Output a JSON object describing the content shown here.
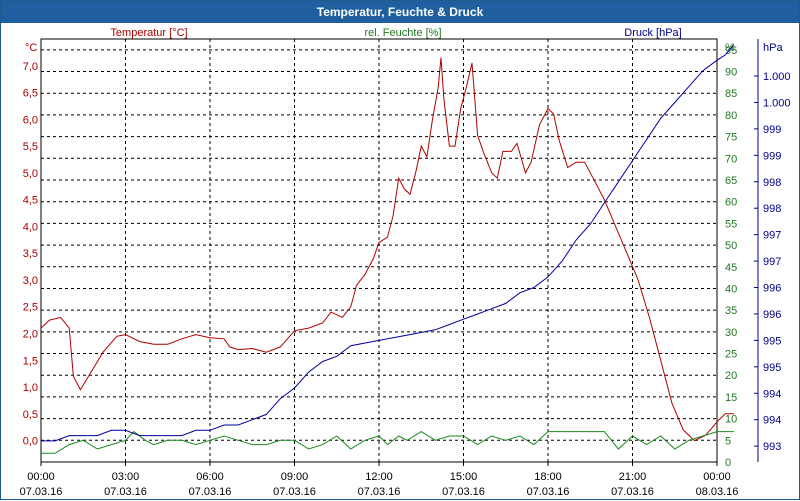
{
  "window": {
    "title": "Temperatur, Feuchte & Druck"
  },
  "colors": {
    "temperature": "#b00000",
    "humidity": "#1a8a1a",
    "pressure": "#0000a0",
    "grid": "#000000"
  },
  "chart_data": {
    "type": "line",
    "title": "Temperatur, Feuchte & Druck",
    "x_unit": "hours since 07.03.16 00:00",
    "x_range": [
      0,
      24
    ],
    "x_ticks": [
      {
        "time": "00:00",
        "date": "07.03.16"
      },
      {
        "time": "03:00",
        "date": "07.03.16"
      },
      {
        "time": "06:00",
        "date": "07.03.16"
      },
      {
        "time": "09:00",
        "date": "07.03.16"
      },
      {
        "time": "12:00",
        "date": "07.03.16"
      },
      {
        "time": "15:00",
        "date": "07.03.16"
      },
      {
        "time": "18:00",
        "date": "07.03.16"
      },
      {
        "time": "21:00",
        "date": "07.03.16"
      },
      {
        "time": "00:00",
        "date": "08.03.16"
      }
    ],
    "axes": {
      "temperature": {
        "unit": "°C",
        "label": "Temperatur [°C]",
        "range": [
          -0.4,
          7.5
        ],
        "ticks": [
          "0,0",
          "0,5",
          "1,0",
          "1,5",
          "2,0",
          "2,5",
          "3,0",
          "3,5",
          "4,0",
          "4,5",
          "5,0",
          "5,5",
          "6,0",
          "6,5",
          "7,0"
        ]
      },
      "humidity": {
        "unit": "%",
        "label": "rel. Feuchte [%]",
        "range": [
          0,
          97.5
        ],
        "ticks": [
          "0",
          "5",
          "10",
          "15",
          "20",
          "25",
          "30",
          "35",
          "40",
          "45",
          "50",
          "55",
          "60",
          "65",
          "70",
          "75",
          "80",
          "85",
          "90",
          "95"
        ]
      },
      "pressure": {
        "unit": "hPa",
        "label": "Druck [hPa]",
        "range": [
          992.7,
          1000.7
        ],
        "ticks": [
          "993",
          "994",
          "994",
          "995",
          "995",
          "996",
          "996",
          "997",
          "997",
          "998",
          "998",
          "999",
          "999",
          "1.000",
          "1.000"
        ]
      }
    },
    "series": [
      {
        "name": "Temperatur [°C]",
        "axis": "temperature",
        "points": [
          [
            0,
            2.1
          ],
          [
            0.3,
            2.25
          ],
          [
            0.7,
            2.3
          ],
          [
            1.0,
            2.1
          ],
          [
            1.15,
            1.2
          ],
          [
            1.4,
            0.95
          ],
          [
            1.8,
            1.3
          ],
          [
            2.2,
            1.65
          ],
          [
            2.7,
            1.95
          ],
          [
            3.0,
            1.98
          ],
          [
            3.5,
            1.85
          ],
          [
            4.0,
            1.8
          ],
          [
            4.5,
            1.8
          ],
          [
            5.0,
            1.9
          ],
          [
            5.5,
            1.98
          ],
          [
            6.0,
            1.92
          ],
          [
            6.5,
            1.9
          ],
          [
            6.7,
            1.75
          ],
          [
            7.0,
            1.7
          ],
          [
            7.5,
            1.72
          ],
          [
            8.0,
            1.65
          ],
          [
            8.5,
            1.75
          ],
          [
            9.0,
            2.05
          ],
          [
            9.5,
            2.1
          ],
          [
            10.0,
            2.2
          ],
          [
            10.3,
            2.4
          ],
          [
            10.7,
            2.3
          ],
          [
            11.0,
            2.5
          ],
          [
            11.2,
            2.9
          ],
          [
            11.5,
            3.1
          ],
          [
            11.8,
            3.4
          ],
          [
            12.0,
            3.7
          ],
          [
            12.3,
            3.8
          ],
          [
            12.5,
            4.2
          ],
          [
            12.7,
            4.9
          ],
          [
            12.9,
            4.7
          ],
          [
            13.1,
            4.6
          ],
          [
            13.3,
            5.0
          ],
          [
            13.5,
            5.5
          ],
          [
            13.7,
            5.3
          ],
          [
            13.9,
            6.0
          ],
          [
            14.1,
            6.6
          ],
          [
            14.2,
            7.15
          ],
          [
            14.3,
            6.4
          ],
          [
            14.5,
            5.5
          ],
          [
            14.7,
            5.5
          ],
          [
            14.9,
            6.2
          ],
          [
            15.1,
            6.6
          ],
          [
            15.3,
            7.05
          ],
          [
            15.5,
            5.7
          ],
          [
            15.7,
            5.4
          ],
          [
            16.0,
            5.0
          ],
          [
            16.2,
            4.9
          ],
          [
            16.4,
            5.4
          ],
          [
            16.7,
            5.4
          ],
          [
            16.9,
            5.55
          ],
          [
            17.2,
            5.0
          ],
          [
            17.4,
            5.2
          ],
          [
            17.7,
            5.9
          ],
          [
            18.0,
            6.2
          ],
          [
            18.2,
            6.1
          ],
          [
            18.4,
            5.6
          ],
          [
            18.7,
            5.1
          ],
          [
            19.0,
            5.2
          ],
          [
            19.3,
            5.2
          ],
          [
            19.6,
            4.9
          ],
          [
            20.0,
            4.5
          ],
          [
            20.4,
            4.0
          ],
          [
            20.8,
            3.5
          ],
          [
            21.2,
            3.0
          ],
          [
            21.6,
            2.3
          ],
          [
            22.0,
            1.5
          ],
          [
            22.4,
            0.7
          ],
          [
            22.8,
            0.2
          ],
          [
            23.2,
            0.0
          ],
          [
            23.6,
            0.1
          ],
          [
            24.0,
            0.35
          ],
          [
            24.3,
            0.5
          ],
          [
            24.6,
            0.5
          ]
        ]
      },
      {
        "name": "rel. Feuchte [%]",
        "axis": "humidity",
        "points": [
          [
            0,
            2
          ],
          [
            0.5,
            2
          ],
          [
            1.0,
            4
          ],
          [
            1.5,
            5
          ],
          [
            2.0,
            3
          ],
          [
            2.5,
            4
          ],
          [
            3.0,
            5
          ],
          [
            3.3,
            7
          ],
          [
            3.7,
            5
          ],
          [
            4.0,
            4
          ],
          [
            4.5,
            5
          ],
          [
            5.0,
            5
          ],
          [
            5.5,
            4
          ],
          [
            6.0,
            5
          ],
          [
            6.5,
            6
          ],
          [
            7.0,
            5
          ],
          [
            7.5,
            4
          ],
          [
            8.0,
            4
          ],
          [
            8.5,
            5
          ],
          [
            9.0,
            5
          ],
          [
            9.5,
            3
          ],
          [
            10.0,
            4
          ],
          [
            10.5,
            6
          ],
          [
            11.0,
            3
          ],
          [
            11.5,
            5
          ],
          [
            12.0,
            6
          ],
          [
            12.3,
            4
          ],
          [
            12.7,
            6
          ],
          [
            13.0,
            5
          ],
          [
            13.5,
            7
          ],
          [
            14.0,
            5
          ],
          [
            14.5,
            6
          ],
          [
            15.0,
            6
          ],
          [
            15.5,
            4
          ],
          [
            16.0,
            6
          ],
          [
            16.5,
            5
          ],
          [
            17.0,
            6
          ],
          [
            17.5,
            4
          ],
          [
            18.0,
            7
          ],
          [
            18.5,
            7
          ],
          [
            19.0,
            7
          ],
          [
            19.5,
            7
          ],
          [
            20.0,
            7
          ],
          [
            20.5,
            3
          ],
          [
            21.0,
            6
          ],
          [
            21.5,
            4
          ],
          [
            22.0,
            6
          ],
          [
            22.5,
            3
          ],
          [
            23.0,
            5
          ],
          [
            23.5,
            6
          ],
          [
            24.0,
            7
          ],
          [
            24.6,
            7
          ]
        ]
      },
      {
        "name": "Druck [hPa]",
        "axis": "pressure",
        "points": [
          [
            0,
            993.1
          ],
          [
            0.5,
            993.1
          ],
          [
            1.0,
            993.2
          ],
          [
            2.0,
            993.2
          ],
          [
            2.5,
            993.3
          ],
          [
            3.0,
            993.3
          ],
          [
            3.5,
            993.2
          ],
          [
            4.0,
            993.2
          ],
          [
            5.0,
            993.2
          ],
          [
            5.5,
            993.3
          ],
          [
            6.0,
            993.3
          ],
          [
            6.5,
            993.4
          ],
          [
            7.0,
            993.4
          ],
          [
            7.5,
            993.5
          ],
          [
            8.0,
            993.6
          ],
          [
            8.5,
            993.9
          ],
          [
            9.0,
            994.1
          ],
          [
            9.5,
            994.4
          ],
          [
            10.0,
            994.6
          ],
          [
            10.5,
            994.7
          ],
          [
            11.0,
            994.9
          ],
          [
            12.0,
            995.0
          ],
          [
            13.0,
            995.1
          ],
          [
            14.0,
            995.2
          ],
          [
            14.5,
            995.3
          ],
          [
            15.0,
            995.4
          ],
          [
            15.5,
            995.5
          ],
          [
            16.0,
            995.6
          ],
          [
            16.5,
            995.7
          ],
          [
            17.0,
            995.9
          ],
          [
            17.5,
            996.0
          ],
          [
            18.0,
            996.2
          ],
          [
            18.5,
            996.5
          ],
          [
            19.0,
            996.9
          ],
          [
            19.5,
            997.2
          ],
          [
            20.0,
            997.6
          ],
          [
            20.5,
            998.0
          ],
          [
            21.0,
            998.4
          ],
          [
            21.5,
            998.8
          ],
          [
            22.0,
            999.2
          ],
          [
            22.5,
            999.5
          ],
          [
            23.0,
            999.8
          ],
          [
            23.5,
            1000.1
          ],
          [
            24.0,
            1000.3
          ],
          [
            24.3,
            1000.4
          ],
          [
            24.6,
            1000.6
          ]
        ]
      }
    ]
  }
}
